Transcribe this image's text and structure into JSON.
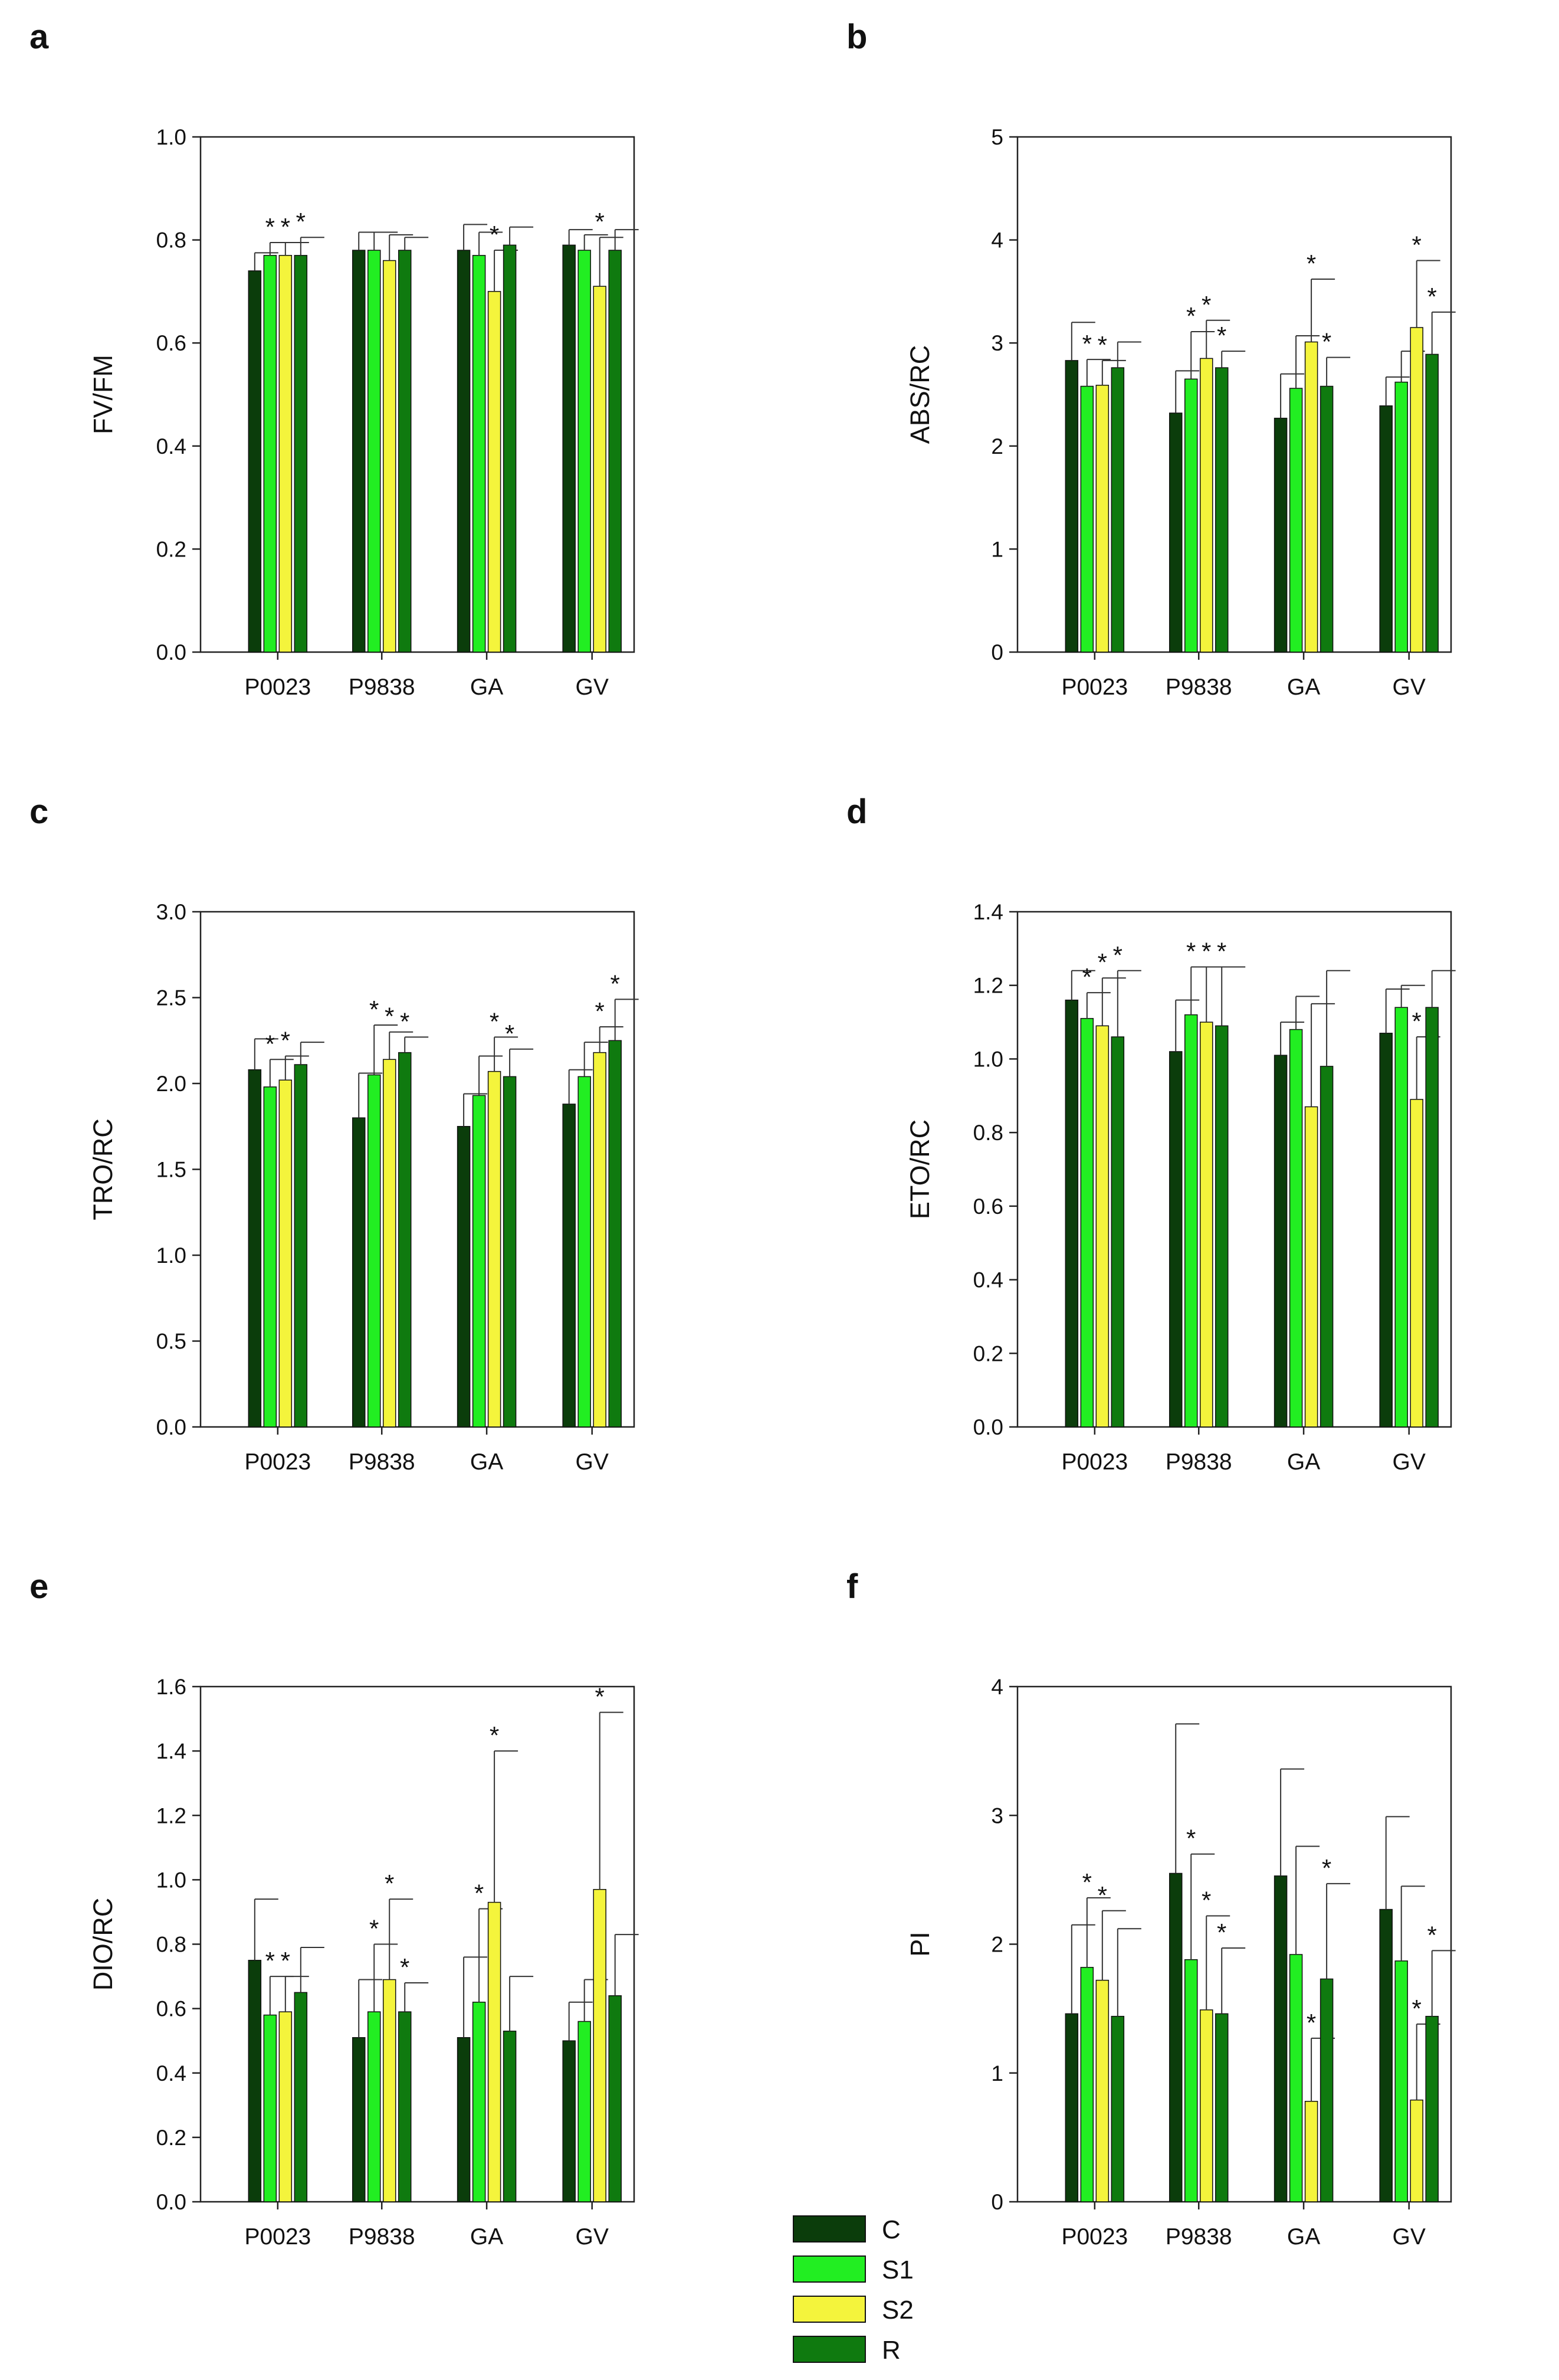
{
  "figure": {
    "categories": [
      "P0023",
      "P9838",
      "GA",
      "GV"
    ],
    "legend": [
      {
        "label": "C",
        "color": "#0b3d0b"
      },
      {
        "label": "S1",
        "color": "#22ee22"
      },
      {
        "label": "S2",
        "color": "#f4f43c"
      },
      {
        "label": "R",
        "color": "#0f7a0f"
      }
    ]
  },
  "chart_data": [
    {
      "panel": "a",
      "type": "bar",
      "ylabel": "FV/FM",
      "xlabel": "",
      "categories": [
        "P0023",
        "P9838",
        "GA",
        "GV"
      ],
      "ylim": [
        0,
        1.0
      ],
      "yticks": [
        "0.0",
        "0.2",
        "0.4",
        "0.6",
        "0.8",
        "1.0"
      ],
      "series": [
        {
          "name": "C",
          "values": [
            0.74,
            0.78,
            0.78,
            0.79
          ],
          "errors": [
            0.035,
            0.035,
            0.05,
            0.03
          ],
          "sig": [
            false,
            false,
            false,
            false
          ]
        },
        {
          "name": "S1",
          "values": [
            0.77,
            0.78,
            0.77,
            0.78
          ],
          "errors": [
            0.025,
            0.035,
            0.045,
            0.03
          ],
          "sig": [
            true,
            false,
            false,
            false
          ]
        },
        {
          "name": "S2",
          "values": [
            0.77,
            0.76,
            0.7,
            0.71
          ],
          "errors": [
            0.025,
            0.05,
            0.08,
            0.095
          ],
          "sig": [
            true,
            false,
            true,
            true
          ]
        },
        {
          "name": "R",
          "values": [
            0.77,
            0.78,
            0.79,
            0.78
          ],
          "errors": [
            0.035,
            0.025,
            0.035,
            0.04
          ],
          "sig": [
            true,
            false,
            false,
            false
          ]
        }
      ]
    },
    {
      "panel": "b",
      "type": "bar",
      "ylabel": "ABS/RC",
      "xlabel": "",
      "categories": [
        "P0023",
        "P9838",
        "GA",
        "GV"
      ],
      "ylim": [
        0,
        5
      ],
      "yticks": [
        "0",
        "1",
        "2",
        "3",
        "4",
        "5"
      ],
      "series": [
        {
          "name": "C",
          "values": [
            2.83,
            2.32,
            2.27,
            2.39
          ],
          "errors": [
            0.37,
            0.41,
            0.43,
            0.28
          ],
          "sig": [
            false,
            false,
            false,
            false
          ]
        },
        {
          "name": "S1",
          "values": [
            2.58,
            2.65,
            2.56,
            2.62
          ],
          "errors": [
            0.26,
            0.46,
            0.51,
            0.3
          ],
          "sig": [
            true,
            true,
            false,
            false
          ]
        },
        {
          "name": "S2",
          "values": [
            2.59,
            2.85,
            3.01,
            3.15
          ],
          "errors": [
            0.24,
            0.37,
            0.61,
            0.65
          ],
          "sig": [
            true,
            true,
            true,
            true
          ]
        },
        {
          "name": "R",
          "values": [
            2.76,
            2.76,
            2.58,
            2.89
          ],
          "errors": [
            0.25,
            0.16,
            0.28,
            0.41
          ],
          "sig": [
            false,
            true,
            true,
            true
          ]
        }
      ]
    },
    {
      "panel": "c",
      "type": "bar",
      "ylabel": "TRO/RC",
      "xlabel": "",
      "categories": [
        "P0023",
        "P9838",
        "GA",
        "GV"
      ],
      "ylim": [
        0,
        3.0
      ],
      "yticks": [
        "0.0",
        "0.5",
        "1.0",
        "1.5",
        "2.0",
        "2.5",
        "3.0"
      ],
      "series": [
        {
          "name": "C",
          "values": [
            2.08,
            1.8,
            1.75,
            1.88
          ],
          "errors": [
            0.18,
            0.26,
            0.19,
            0.2
          ],
          "sig": [
            false,
            false,
            false,
            false
          ]
        },
        {
          "name": "S1",
          "values": [
            1.98,
            2.05,
            1.93,
            2.04
          ],
          "errors": [
            0.16,
            0.29,
            0.23,
            0.2
          ],
          "sig": [
            true,
            true,
            false,
            false
          ]
        },
        {
          "name": "S2",
          "values": [
            2.02,
            2.14,
            2.07,
            2.18
          ],
          "errors": [
            0.14,
            0.16,
            0.2,
            0.15
          ],
          "sig": [
            true,
            true,
            true,
            true
          ]
        },
        {
          "name": "R",
          "values": [
            2.11,
            2.18,
            2.04,
            2.25
          ],
          "errors": [
            0.13,
            0.09,
            0.16,
            0.24
          ],
          "sig": [
            false,
            true,
            true,
            true
          ]
        }
      ]
    },
    {
      "panel": "d",
      "type": "bar",
      "ylabel": "ETO/RC",
      "xlabel": "",
      "categories": [
        "P0023",
        "P9838",
        "GA",
        "GV"
      ],
      "ylim": [
        0,
        1.4
      ],
      "yticks": [
        "0.0",
        "0.2",
        "0.4",
        "0.6",
        "0.8",
        "1.0",
        "1.2",
        "1.4"
      ],
      "series": [
        {
          "name": "C",
          "values": [
            1.16,
            1.02,
            1.01,
            1.07
          ],
          "errors": [
            0.08,
            0.14,
            0.09,
            0.12
          ],
          "sig": [
            false,
            false,
            false,
            false
          ]
        },
        {
          "name": "S1",
          "values": [
            1.11,
            1.12,
            1.08,
            1.14
          ],
          "errors": [
            0.07,
            0.13,
            0.09,
            0.06
          ],
          "sig": [
            true,
            true,
            false,
            false
          ]
        },
        {
          "name": "S2",
          "values": [
            1.09,
            1.1,
            0.87,
            0.89
          ],
          "errors": [
            0.13,
            0.15,
            0.28,
            0.17
          ],
          "sig": [
            true,
            true,
            false,
            true
          ]
        },
        {
          "name": "R",
          "values": [
            1.06,
            1.09,
            0.98,
            1.14
          ],
          "errors": [
            0.18,
            0.16,
            0.26,
            0.1
          ],
          "sig": [
            true,
            true,
            false,
            false
          ]
        }
      ]
    },
    {
      "panel": "e",
      "type": "bar",
      "ylabel": "DIO/RC",
      "xlabel": "",
      "categories": [
        "P0023",
        "P9838",
        "GA",
        "GV"
      ],
      "ylim": [
        0,
        1.6
      ],
      "yticks": [
        "0.0",
        "0.2",
        "0.4",
        "0.6",
        "0.8",
        "1.0",
        "1.2",
        "1.4",
        "1.6"
      ],
      "series": [
        {
          "name": "C",
          "values": [
            0.75,
            0.51,
            0.51,
            0.5
          ],
          "errors": [
            0.19,
            0.18,
            0.25,
            0.12
          ],
          "sig": [
            false,
            false,
            false,
            false
          ]
        },
        {
          "name": "S1",
          "values": [
            0.58,
            0.59,
            0.62,
            0.56
          ],
          "errors": [
            0.12,
            0.21,
            0.29,
            0.13
          ],
          "sig": [
            true,
            true,
            true,
            false
          ]
        },
        {
          "name": "S2",
          "values": [
            0.59,
            0.69,
            0.93,
            0.97
          ],
          "errors": [
            0.11,
            0.25,
            0.47,
            0.55
          ],
          "sig": [
            true,
            true,
            true,
            true
          ]
        },
        {
          "name": "R",
          "values": [
            0.65,
            0.59,
            0.53,
            0.64
          ],
          "errors": [
            0.14,
            0.09,
            0.17,
            0.19
          ],
          "sig": [
            false,
            true,
            false,
            false
          ]
        }
      ]
    },
    {
      "panel": "f",
      "type": "bar",
      "ylabel": "PI",
      "xlabel": "",
      "categories": [
        "P0023",
        "P9838",
        "GA",
        "GV"
      ],
      "ylim": [
        0,
        4
      ],
      "yticks": [
        "0",
        "1",
        "2",
        "3",
        "4"
      ],
      "series": [
        {
          "name": "C",
          "values": [
            1.46,
            2.55,
            2.53,
            2.27
          ],
          "errors": [
            0.69,
            1.16,
            0.83,
            0.72
          ],
          "sig": [
            false,
            false,
            false,
            false
          ]
        },
        {
          "name": "S1",
          "values": [
            1.82,
            1.88,
            1.92,
            1.87
          ],
          "errors": [
            0.54,
            0.82,
            0.84,
            0.58
          ],
          "sig": [
            true,
            true,
            false,
            false
          ]
        },
        {
          "name": "S2",
          "values": [
            1.72,
            1.49,
            0.78,
            0.79
          ],
          "errors": [
            0.54,
            0.73,
            0.49,
            0.59
          ],
          "sig": [
            true,
            true,
            true,
            true
          ]
        },
        {
          "name": "R",
          "values": [
            1.44,
            1.46,
            1.73,
            1.44
          ],
          "errors": [
            0.68,
            0.51,
            0.74,
            0.51
          ],
          "sig": [
            false,
            true,
            true,
            true
          ]
        }
      ]
    }
  ]
}
